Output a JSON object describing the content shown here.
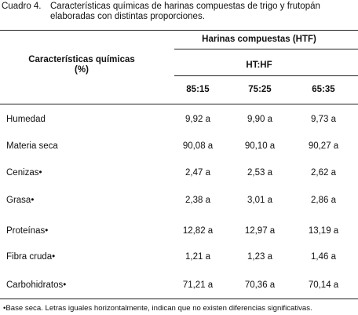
{
  "caption": {
    "label": "Cuadro 4.",
    "lines": [
      "Características químicas de harinas compuestas de trigo y frutopán",
      "elaboradas con distintas proporciones."
    ]
  },
  "table": {
    "row_header": [
      "Características químicas",
      "(%)"
    ],
    "group_header": "Harinas compuestas (HTF)",
    "sub_header": "HT:HF",
    "columns": [
      "85:15",
      "75:25",
      "65:35"
    ],
    "rows": [
      [
        "Humedad",
        "9,92 a",
        "9,90 a",
        "9,73 a"
      ],
      [
        "Materia seca",
        "90,08 a",
        "90,10 a",
        "90,27 a"
      ],
      [
        "Cenizas•",
        "2,47 a",
        "2,53 a",
        "2,62 a"
      ],
      [
        "Grasa•",
        "2,38 a",
        "3,01 a",
        "2,86 a"
      ],
      [
        "Proteínas•",
        "12,82 a",
        "12,97 a",
        "13,19 a"
      ],
      [
        "Fibra cruda•",
        "1,21 a",
        "1,23 a",
        "1,46 a"
      ],
      [
        "Carbohidratos•",
        "71,21 a",
        "70,36 a",
        "70,14 a"
      ]
    ]
  },
  "footnote": "•Base seca. Letras iguales horizontalmente, indican que no existen diferencias significativas."
}
